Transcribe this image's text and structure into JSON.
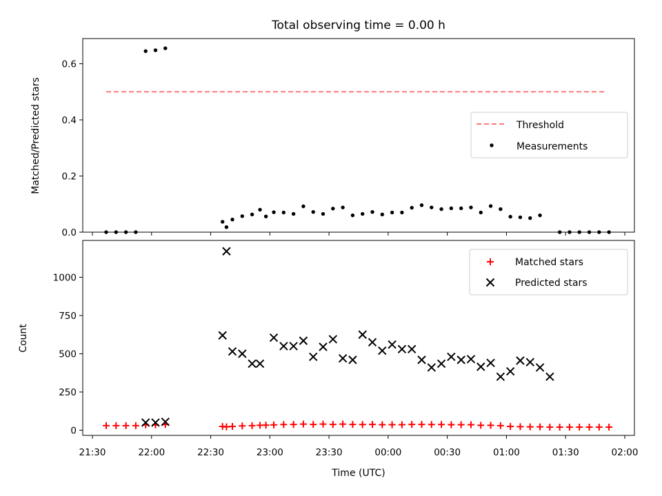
{
  "chart_data": {
    "title": "Total observing time = 0.00 h",
    "xlabel": "Time (UTC)",
    "x_ticks": [
      "21:30",
      "22:00",
      "22:30",
      "23:00",
      "23:30",
      "00:00",
      "00:30",
      "01:00",
      "01:30",
      "02:00"
    ],
    "xlim": [
      "21:30",
      "02:00"
    ],
    "panels": [
      {
        "type": "scatter",
        "ylabel": "Matched/Predicted stars",
        "ylim": [
          0,
          0.69
        ],
        "y_ticks": [
          "0.0",
          "0.2",
          "0.4",
          "0.6"
        ],
        "legend": "center-right",
        "threshold": {
          "name": "Threshold",
          "value": 0.5,
          "x_from": "21:37",
          "x_to": "01:51",
          "color": "#ff7777"
        },
        "series": [
          {
            "name": "Measurements",
            "color": "#000000",
            "marker": "dot",
            "points": [
              [
                "21:37",
                0
              ],
              [
                "21:42",
                0
              ],
              [
                "21:47",
                0
              ],
              [
                "21:52",
                0
              ],
              [
                "21:57",
                0.645
              ],
              [
                "22:02",
                0.648
              ],
              [
                "22:07",
                0.655
              ],
              [
                "22:36",
                0.037
              ],
              [
                "22:38",
                0.018
              ],
              [
                "22:41",
                0.045
              ],
              [
                "22:46",
                0.057
              ],
              [
                "22:51",
                0.063
              ],
              [
                "22:55",
                0.08
              ],
              [
                "22:58",
                0.056
              ],
              [
                "23:02",
                0.071
              ],
              [
                "23:07",
                0.07
              ],
              [
                "23:12",
                0.065
              ],
              [
                "23:17",
                0.092
              ],
              [
                "23:22",
                0.072
              ],
              [
                "23:27",
                0.065
              ],
              [
                "23:32",
                0.084
              ],
              [
                "23:37",
                0.088
              ],
              [
                "23:42",
                0.06
              ],
              [
                "23:47",
                0.065
              ],
              [
                "23:52",
                0.072
              ],
              [
                "23:57",
                0.063
              ],
              [
                "00:02",
                0.07
              ],
              [
                "00:07",
                0.07
              ],
              [
                "00:12",
                0.087
              ],
              [
                "00:17",
                0.096
              ],
              [
                "00:22",
                0.088
              ],
              [
                "00:27",
                0.082
              ],
              [
                "00:32",
                0.085
              ],
              [
                "00:37",
                0.085
              ],
              [
                "00:42",
                0.088
              ],
              [
                "00:47",
                0.07
              ],
              [
                "00:52",
                0.093
              ],
              [
                "00:57",
                0.082
              ],
              [
                "01:02",
                0.055
              ],
              [
                "01:07",
                0.053
              ],
              [
                "01:12",
                0.05
              ],
              [
                "01:17",
                0.06
              ],
              [
                "01:27",
                0
              ],
              [
                "01:32",
                0
              ],
              [
                "01:37",
                0
              ],
              [
                "01:42",
                0
              ],
              [
                "01:47",
                0
              ],
              [
                "01:52",
                0
              ]
            ]
          }
        ]
      },
      {
        "type": "scatter",
        "ylabel": "Count",
        "ylim": [
          -40,
          1180
        ],
        "y_ticks": [
          "0",
          "250",
          "500",
          "750",
          "1000"
        ],
        "legend": "top-right",
        "series": [
          {
            "name": "Matched stars",
            "color": "#ff0000",
            "marker": "plus",
            "points": [
              [
                "21:37",
                30
              ],
              [
                "21:42",
                30
              ],
              [
                "21:47",
                30
              ],
              [
                "21:52",
                30
              ],
              [
                "21:57",
                35
              ],
              [
                "22:02",
                35
              ],
              [
                "22:07",
                38
              ],
              [
                "22:36",
                25
              ],
              [
                "22:38",
                22
              ],
              [
                "22:41",
                25
              ],
              [
                "22:46",
                28
              ],
              [
                "22:51",
                30
              ],
              [
                "22:55",
                32
              ],
              [
                "22:58",
                33
              ],
              [
                "23:02",
                35
              ],
              [
                "23:07",
                37
              ],
              [
                "23:12",
                38
              ],
              [
                "23:17",
                40
              ],
              [
                "23:22",
                38
              ],
              [
                "23:27",
                40
              ],
              [
                "23:32",
                38
              ],
              [
                "23:37",
                40
              ],
              [
                "23:42",
                38
              ],
              [
                "23:47",
                37
              ],
              [
                "23:52",
                38
              ],
              [
                "23:57",
                36
              ],
              [
                "00:02",
                36
              ],
              [
                "00:07",
                36
              ],
              [
                "00:12",
                38
              ],
              [
                "00:17",
                38
              ],
              [
                "00:22",
                37
              ],
              [
                "00:27",
                37
              ],
              [
                "00:32",
                36
              ],
              [
                "00:37",
                36
              ],
              [
                "00:42",
                36
              ],
              [
                "00:47",
                32
              ],
              [
                "00:52",
                32
              ],
              [
                "00:57",
                30
              ],
              [
                "01:02",
                25
              ],
              [
                "01:07",
                23
              ],
              [
                "01:12",
                22
              ],
              [
                "01:17",
                22
              ],
              [
                "01:22",
                20
              ],
              [
                "01:27",
                20
              ],
              [
                "01:32",
                20
              ],
              [
                "01:37",
                20
              ],
              [
                "01:42",
                20
              ],
              [
                "01:47",
                20
              ],
              [
                "01:52",
                20
              ]
            ]
          },
          {
            "name": "Predicted stars",
            "color": "#000000",
            "marker": "x",
            "points": [
              [
                "21:57",
                50
              ],
              [
                "22:02",
                50
              ],
              [
                "22:07",
                55
              ],
              [
                "22:36",
                620
              ],
              [
                "22:38",
                1170
              ],
              [
                "22:41",
                515
              ],
              [
                "22:46",
                500
              ],
              [
                "22:51",
                435
              ],
              [
                "22:55",
                435
              ],
              [
                "23:02",
                605
              ],
              [
                "23:07",
                550
              ],
              [
                "23:12",
                550
              ],
              [
                "23:17",
                585
              ],
              [
                "23:22",
                480
              ],
              [
                "23:27",
                545
              ],
              [
                "23:32",
                595
              ],
              [
                "23:37",
                470
              ],
              [
                "23:42",
                460
              ],
              [
                "23:47",
                625
              ],
              [
                "23:52",
                575
              ],
              [
                "23:57",
                520
              ],
              [
                "00:02",
                560
              ],
              [
                "00:07",
                530
              ],
              [
                "00:12",
                530
              ],
              [
                "00:17",
                460
              ],
              [
                "00:22",
                410
              ],
              [
                "00:27",
                435
              ],
              [
                "00:32",
                480
              ],
              [
                "00:37",
                460
              ],
              [
                "00:42",
                465
              ],
              [
                "00:47",
                415
              ],
              [
                "00:52",
                440
              ],
              [
                "00:57",
                350
              ],
              [
                "01:02",
                385
              ],
              [
                "01:07",
                455
              ],
              [
                "01:12",
                445
              ],
              [
                "01:17",
                410
              ],
              [
                "01:22",
                350
              ]
            ]
          }
        ]
      }
    ]
  }
}
